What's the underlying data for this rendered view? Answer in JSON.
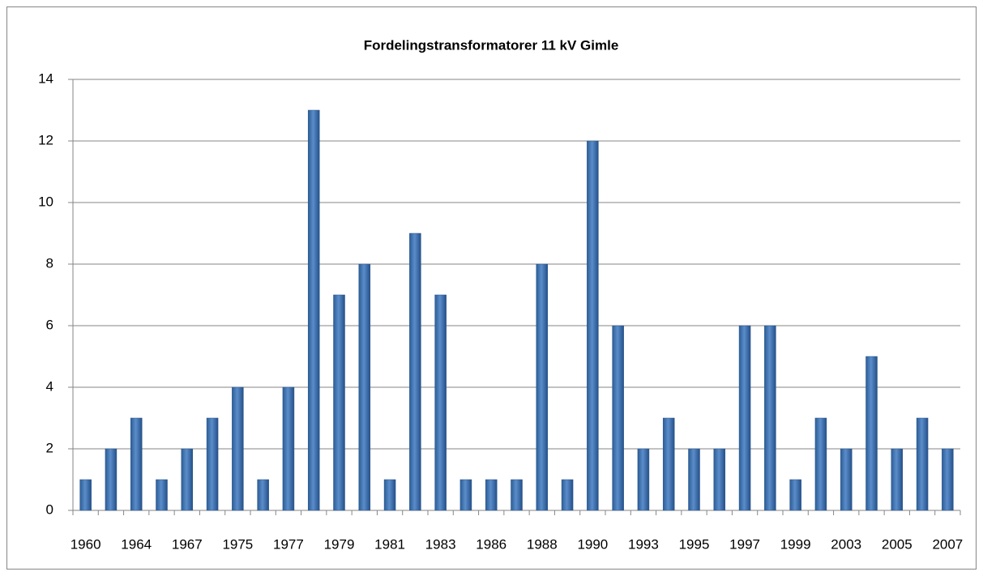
{
  "chart_data": {
    "type": "bar",
    "title": "Fordelingstransformatorer 11 kV Gimle",
    "categories": [
      "1960",
      null,
      "1964",
      null,
      "1967",
      null,
      "1975",
      null,
      "1977",
      null,
      "1979",
      null,
      "1981",
      null,
      "1983",
      null,
      "1986",
      null,
      "1988",
      null,
      "1990",
      null,
      "1993",
      null,
      "1995",
      null,
      "1997",
      null,
      "1999",
      null,
      "2003",
      null,
      "2005",
      null,
      "2007"
    ],
    "values": [
      1,
      2,
      3,
      1,
      2,
      3,
      4,
      1,
      4,
      13,
      7,
      8,
      1,
      9,
      7,
      1,
      1,
      1,
      8,
      1,
      12,
      6,
      2,
      3,
      2,
      2,
      6,
      6,
      1,
      3,
      2,
      5,
      2,
      3,
      2
    ],
    "color": "#4f81bd",
    "ylim": [
      0,
      14
    ],
    "yticks": [
      0,
      2,
      4,
      6,
      8,
      10,
      12,
      14
    ],
    "grid": true
  }
}
